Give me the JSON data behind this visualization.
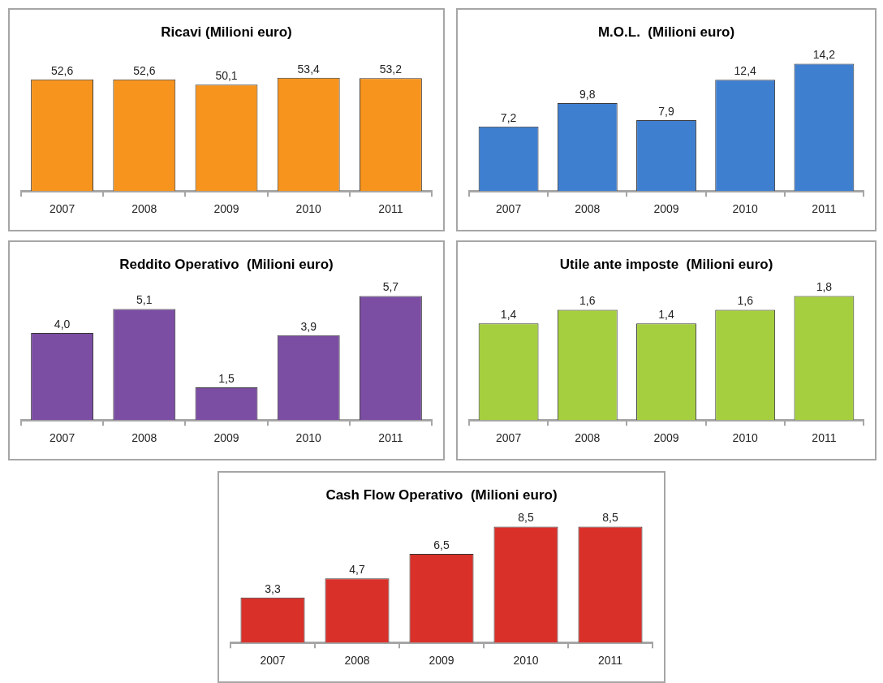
{
  "chart_data": [
    {
      "type": "bar",
      "title": "Ricavi (Milioni euro)",
      "categories": [
        "2007",
        "2008",
        "2009",
        "2010",
        "2011"
      ],
      "values": [
        52.6,
        52.6,
        50.1,
        53.4,
        53.2
      ],
      "value_labels": [
        "52,6",
        "52,6",
        "50,1",
        "53,4",
        "53,2"
      ],
      "color": "#f7941d",
      "tick_labels": "x"
    },
    {
      "type": "bar",
      "title": "M.O.L.  (Milioni euro)",
      "categories": [
        "2007",
        "2008",
        "2009",
        "2010",
        "2011"
      ],
      "values": [
        7.2,
        9.8,
        7.9,
        12.4,
        14.2
      ],
      "value_labels": [
        "7,2",
        "9,8",
        "7,9",
        "12,4",
        "14,2"
      ],
      "color": "#3f7fd0",
      "ylim": [
        0,
        14.2
      ],
      "tick_labels": "x"
    },
    {
      "type": "bar",
      "title": "Reddito Operativo  (Milioni euro)",
      "categories": [
        "2007",
        "2008",
        "2009",
        "2010",
        "2011"
      ],
      "values": [
        4.0,
        5.1,
        1.5,
        3.9,
        5.7
      ],
      "value_labels": [
        "4,0",
        "5,1",
        "1,5",
        "3,9",
        "5,7"
      ],
      "color": "#7b4ea3",
      "ylim": [
        0,
        5.7
      ],
      "tick_labels": "x"
    },
    {
      "type": "bar",
      "title": "Utile ante imposte  (Milioni euro)",
      "categories": [
        "2007",
        "2008",
        "2009",
        "2010",
        "2011"
      ],
      "values": [
        1.4,
        1.6,
        1.4,
        1.6,
        1.8
      ],
      "value_labels": [
        "1,4",
        "1,6",
        "1,4",
        "1,6",
        "1,8"
      ],
      "color": "#a6cf3f",
      "tick_labels": "x"
    },
    {
      "type": "bar",
      "title": "Cash Flow Operativo  (Milioni euro)",
      "categories": [
        "2007",
        "2008",
        "2009",
        "2010",
        "2011"
      ],
      "values": [
        3.3,
        4.7,
        6.5,
        8.5,
        8.5
      ],
      "value_labels": [
        "3,3",
        "4,7",
        "6,5",
        "8,5",
        "8,5"
      ],
      "color": "#d9302a",
      "ylim": [
        0,
        8.5
      ],
      "tick_labels": "x"
    }
  ]
}
